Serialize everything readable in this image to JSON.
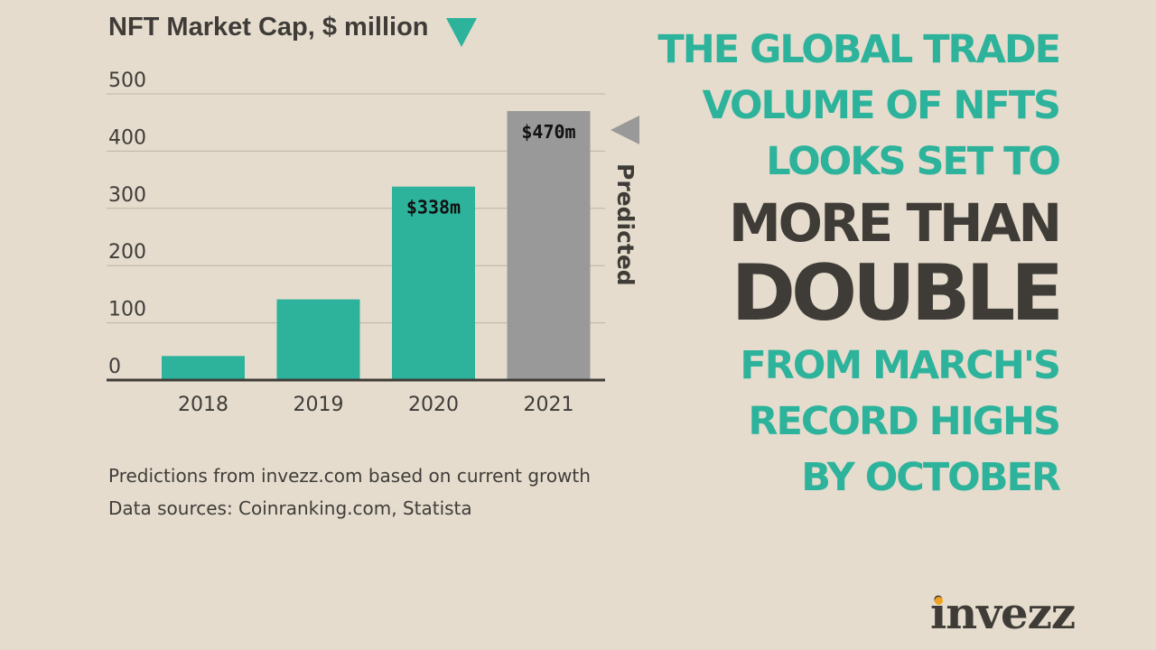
{
  "chart_data": {
    "type": "bar",
    "title": "NFT Market Cap, $ million",
    "categories": [
      "2018",
      "2019",
      "2020",
      "2021"
    ],
    "values": [
      42,
      141,
      338,
      470
    ],
    "bar_colors": [
      "#2db39b",
      "#2db39b",
      "#2db39b",
      "#999999"
    ],
    "data_labels": [
      "",
      "",
      "$338m",
      "$470m"
    ],
    "ylim": [
      0,
      500
    ],
    "yticks": [
      0,
      100,
      200,
      300,
      400,
      500
    ],
    "grid": true,
    "annotation": {
      "text": "Predicted",
      "applies_to": "2021",
      "color": "#999999"
    }
  },
  "footnotes": [
    "Predictions from invezz.com based on current growth",
    "Data sources: Coinranking.com, Statista"
  ],
  "headline": {
    "line1": "THE GLOBAL TRADE",
    "line2": "VOLUME OF NFTS",
    "line3": "LOOKS SET TO",
    "emphasis1": "MORE THAN",
    "emphasis2": "DOUBLE",
    "line4": "FROM MARCH'S",
    "line5": "RECORD HIGHS",
    "line6": "BY OCTOBER"
  },
  "logo_text": "invezz",
  "colors": {
    "background": "#e5dccd",
    "accent": "#2db39b",
    "predicted": "#999999",
    "text_dark": "#3f3c38",
    "logo_dot": "#f2a31b"
  }
}
